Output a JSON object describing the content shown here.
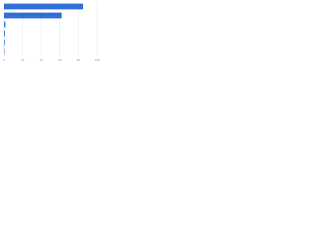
{
  "chart_data": {
    "type": "bar",
    "orientation": "horizontal",
    "categories": [
      null,
      null,
      null,
      null,
      null,
      null
    ],
    "values": [
      85,
      62,
      1.5,
      1,
      0.8,
      0.5
    ],
    "color": "#2f6fd6",
    "xlim": [
      0,
      100
    ],
    "xticks": [
      0,
      20,
      40,
      60,
      80,
      100
    ],
    "grid": true
  }
}
